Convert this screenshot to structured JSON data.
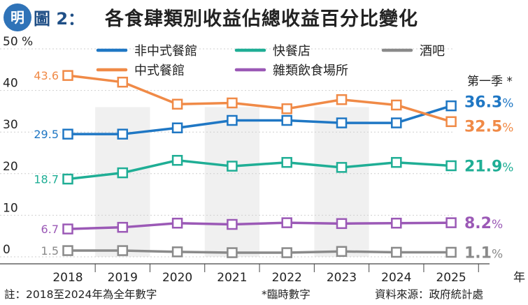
{
  "header": {
    "logo_text": "明",
    "figure_label": "圖 2：",
    "title": "各食肆類別收益佔總收益百分比變化"
  },
  "footer": {
    "note": "註：2018至2024年為全年數字",
    "asterisk_note": "*臨時數字",
    "source": "資料來源：政府統計處"
  },
  "chart_data": {
    "type": "line",
    "categories": [
      "2018",
      "2019",
      "2020",
      "2021",
      "2022",
      "2023",
      "2024",
      "2025"
    ],
    "x_unit_label": "年",
    "y_unit_label": "%",
    "y_ticks": [
      0,
      10,
      20,
      30,
      40,
      50
    ],
    "ylim": [
      0,
      50
    ],
    "last_point_note": "第一季 *",
    "shaded_bands": true,
    "series": [
      {
        "name": "非中式餐館",
        "color": "#1f77c4",
        "values": [
          29.5,
          29.5,
          31.0,
          32.8,
          32.8,
          32.2,
          32.2,
          36.3
        ],
        "first_label": "29.5",
        "last_label": "36.3",
        "last_suffix": "%"
      },
      {
        "name": "中式餐館",
        "color": "#f08a47",
        "values": [
          43.6,
          42.0,
          36.7,
          37.0,
          35.6,
          37.8,
          36.5,
          32.5
        ],
        "first_label": "43.6",
        "last_label": "32.5",
        "last_suffix": "%"
      },
      {
        "name": "快餐店",
        "color": "#1fae95",
        "values": [
          18.7,
          20.2,
          23.2,
          21.8,
          22.7,
          21.5,
          22.7,
          21.9
        ],
        "first_label": "18.7",
        "last_label": "21.9",
        "last_suffix": "%"
      },
      {
        "name": "雜類飲食場所",
        "color": "#9b59b6",
        "values": [
          6.7,
          7.1,
          8.1,
          7.8,
          8.2,
          8.0,
          8.1,
          8.2
        ],
        "first_label": "6.7",
        "last_label": "8.2",
        "last_suffix": "%"
      },
      {
        "name": "酒吧",
        "color": "#8a8a8a",
        "values": [
          1.5,
          1.5,
          1.2,
          1.0,
          1.0,
          1.3,
          1.1,
          1.1
        ],
        "first_label": "1.5",
        "last_label": "1.1",
        "last_suffix": "%"
      }
    ],
    "legend": [
      {
        "name": "非中式餐館",
        "color": "#1f77c4"
      },
      {
        "name": "快餐店",
        "color": "#1fae95"
      },
      {
        "name": "酒吧",
        "color": "#8a8a8a"
      },
      {
        "name": "中式餐館",
        "color": "#f08a47"
      },
      {
        "name": "雜類飲食場所",
        "color": "#9b59b6"
      }
    ]
  }
}
